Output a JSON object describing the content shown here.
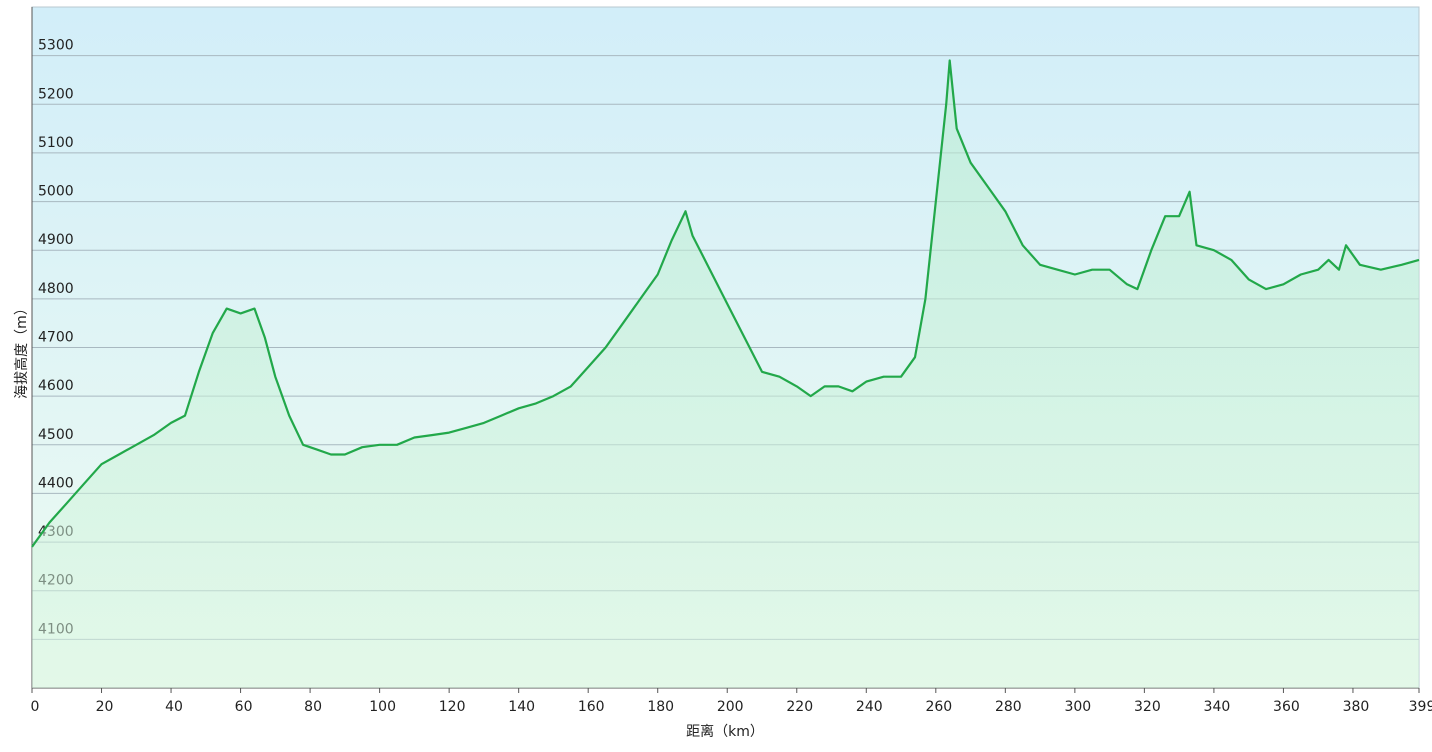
{
  "chart_data": {
    "type": "area",
    "xlabel": "距离（km）",
    "ylabel": "海拔高度（m）",
    "x": [
      0,
      5,
      10,
      15,
      20,
      25,
      30,
      35,
      40,
      44,
      48,
      52,
      56,
      60,
      64,
      67,
      70,
      74,
      78,
      82,
      86,
      90,
      95,
      100,
      105,
      110,
      115,
      120,
      125,
      130,
      135,
      140,
      145,
      150,
      155,
      160,
      165,
      170,
      175,
      180,
      184,
      188,
      190,
      195,
      200,
      205,
      210,
      215,
      220,
      224,
      228,
      232,
      236,
      240,
      245,
      250,
      254,
      257,
      260,
      263,
      264,
      266,
      270,
      275,
      280,
      285,
      290,
      295,
      300,
      305,
      310,
      315,
      318,
      322,
      326,
      330,
      333,
      335,
      340,
      345,
      350,
      355,
      360,
      365,
      370,
      373,
      376,
      378,
      382,
      388,
      394,
      399
    ],
    "series": [
      {
        "name": "海拔高度",
        "color": "#22a84a",
        "values": [
          4290,
          4340,
          4380,
          4420,
          4460,
          4480,
          4500,
          4520,
          4545,
          4560,
          4650,
          4730,
          4780,
          4770,
          4780,
          4720,
          4640,
          4560,
          4500,
          4490,
          4480,
          4480,
          4495,
          4500,
          4500,
          4515,
          4520,
          4525,
          4535,
          4545,
          4560,
          4575,
          4585,
          4600,
          4620,
          4660,
          4700,
          4750,
          4800,
          4850,
          4920,
          4980,
          4930,
          4860,
          4790,
          4720,
          4650,
          4640,
          4620,
          4600,
          4620,
          4620,
          4610,
          4630,
          4640,
          4640,
          4680,
          4800,
          5000,
          5200,
          5290,
          5150,
          5080,
          5030,
          4980,
          4910,
          4870,
          4860,
          4850,
          4860,
          4860,
          4830,
          4820,
          4900,
          4970,
          4970,
          5020,
          4910,
          4900,
          4880,
          4840,
          4820,
          4830,
          4850,
          4860,
          4880,
          4860,
          4910,
          4870,
          4860,
          4870,
          4880
        ]
      }
    ],
    "xlim": [
      0,
      399
    ],
    "xticks": [
      0,
      20,
      40,
      60,
      80,
      100,
      120,
      140,
      160,
      180,
      200,
      220,
      240,
      260,
      280,
      300,
      320,
      340,
      360,
      380,
      399
    ],
    "ylim": [
      4000,
      5400
    ],
    "yticks": [
      4100,
      4200,
      4300,
      4400,
      4500,
      4600,
      4700,
      4800,
      4900,
      5000,
      5100,
      5200,
      5300
    ],
    "grid": true
  }
}
